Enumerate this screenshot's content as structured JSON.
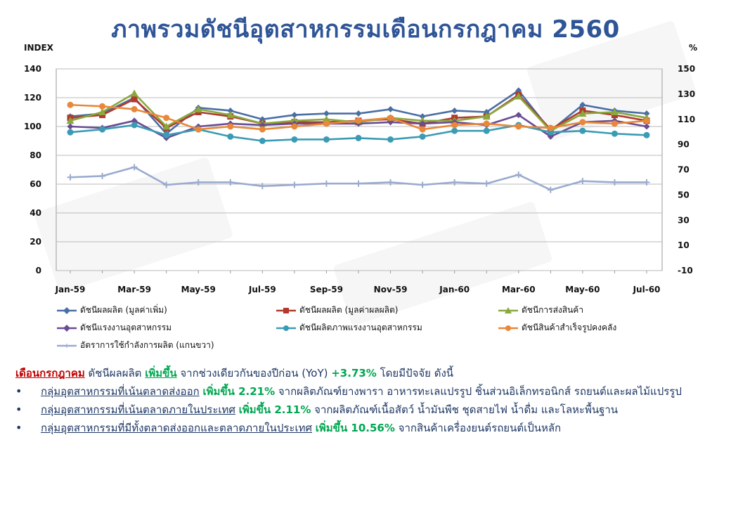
{
  "page_title": "ภาพรวมดัชนีอุตสาหกรรมเดือนกรกฎาคม 2560",
  "chart_data": {
    "type": "line",
    "y_left_label": "INDEX",
    "y_right_label": "%",
    "y_left_range": [
      0,
      140
    ],
    "y_left_ticks": [
      0,
      20,
      40,
      60,
      80,
      100,
      120,
      140
    ],
    "y_right_range": [
      -10,
      150
    ],
    "y_right_ticks": [
      -10,
      10,
      30,
      50,
      70,
      90,
      110,
      130,
      150
    ],
    "grid": "horizontal",
    "legend_position": "bottom",
    "categories": [
      "Jan-59",
      "Feb-59",
      "Mar-59",
      "Apr-59",
      "May-59",
      "Jun-59",
      "Jul-59",
      "Aug-59",
      "Sep-59",
      "Oct-59",
      "Nov-59",
      "Dec-59",
      "Jan-60",
      "Feb-60",
      "Mar-60",
      "Apr-60",
      "May-60",
      "Jun-60",
      "Jul-60"
    ],
    "x_tick_labels": [
      "Jan-59",
      "Mar-59",
      "May-59",
      "Jul-59",
      "Sep-59",
      "Nov-59",
      "Jan-60",
      "Mar-60",
      "May-60",
      "Jul-60"
    ],
    "series": [
      {
        "name": "ดัชนีผลผลิต (มูลค่าเพิ่ม)",
        "color": "#4a6fa5",
        "marker": "diamond",
        "axis": "left",
        "values": [
          107,
          109,
          120,
          95,
          113,
          111,
          105,
          108,
          109,
          109,
          112,
          107,
          111,
          110,
          125,
          97,
          115,
          111,
          109
        ]
      },
      {
        "name": "ดัชนีผลผลิต (มูลค่าผลผลิต)",
        "color": "#b03a2e",
        "marker": "square",
        "axis": "left",
        "values": [
          106,
          108,
          119,
          99,
          110,
          107,
          102,
          103,
          103,
          104,
          105,
          102,
          106,
          107,
          122,
          98,
          111,
          108,
          104
        ]
      },
      {
        "name": "ดัชนีการส่งสินค้า",
        "color": "#8aa83c",
        "marker": "triangle",
        "axis": "left",
        "values": [
          104,
          110,
          123,
          100,
          112,
          108,
          102,
          104,
          105,
          103,
          106,
          104,
          104,
          107,
          121,
          97,
          109,
          110,
          106
        ]
      },
      {
        "name": "ดัชนีแรงงานอุตสาหกรรม",
        "color": "#6a4c93",
        "marker": "diamond",
        "axis": "left",
        "values": [
          100,
          99,
          104,
          92,
          100,
          102,
          101,
          102,
          102,
          102,
          103,
          102,
          103,
          101,
          108,
          93,
          103,
          104,
          100
        ]
      },
      {
        "name": "ดัชนีผลิตภาพแรงงานอุตสาหกรรม",
        "color": "#3b9bb5",
        "marker": "circle",
        "axis": "left",
        "values": [
          96,
          98,
          101,
          94,
          98,
          93,
          90,
          91,
          91,
          92,
          91,
          93,
          97,
          97,
          101,
          96,
          97,
          95,
          94
        ]
      },
      {
        "name": "ดัชนีสินค้าสำเร็จรูปคงคลัง",
        "color": "#e8883a",
        "marker": "circle",
        "axis": "left",
        "values": [
          115,
          114,
          112,
          106,
          98,
          100,
          98,
          100,
          102,
          104,
          106,
          98,
          101,
          102,
          100,
          99,
          103,
          102,
          104
        ]
      },
      {
        "name": "อัตราการใช้กำลังการผลิต (แกนขวา)",
        "color": "#9aabd0",
        "marker": "cross",
        "axis": "right",
        "values": [
          64,
          65,
          72,
          58,
          60,
          60,
          57,
          58,
          59,
          59,
          60,
          58,
          60,
          59,
          66,
          54,
          61,
          60,
          60
        ]
      }
    ]
  },
  "summary": {
    "month": "เดือนกรกฎาคม",
    "text1": " ดัชนีผลผลิต ",
    "up": "เพิ่มขึ้น",
    "text2": " จากช่วงเดียวกันของปีก่อน (YoY) ",
    "value": "+3.73%",
    "text3": " โดยมีปัจจัย ดังนี้"
  },
  "bullets": [
    {
      "group": "กลุ่มอุตสาหกรรมที่เน้นตลาดส่งออก",
      "change": "เพิ่มขึ้น 2.21%",
      "detail": " จากผลิตภัณฑ์ยางพารา อาหารทะเลแปรรูป ชิ้นส่วนอิเล็กทรอนิกส์ รถยนต์และผลไม้แปรรูป"
    },
    {
      "group": "กลุ่มอุตสาหกรรมที่เน้นตลาดภายในประเทศ",
      "change": "เพิ่มขึ้น 2.11%",
      "detail": " จากผลิตภัณฑ์เนื้อสัตว์ น้ำมันพืช ชุดสายไฟ น้ำดื่ม และโลหะพื้นฐาน"
    },
    {
      "group": "กลุ่มอุตสาหกรรมที่มีทั้งตลาดส่งออกและตลาดภายในประเทศ",
      "change": "เพิ่มขึ้น 10.56%",
      "detail": " จากสินค้าเครื่องยนต์รถยนต์เป็นหลัก"
    }
  ]
}
